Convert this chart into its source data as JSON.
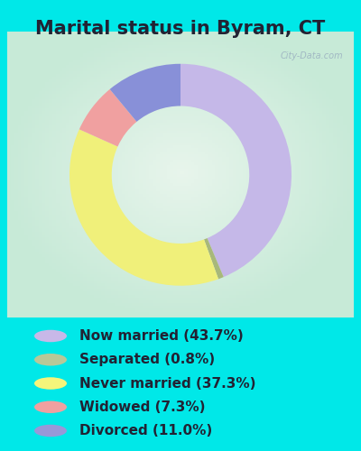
{
  "title": "Marital status in Byram, CT",
  "slices": [
    43.7,
    0.8,
    37.3,
    7.3,
    11.0
  ],
  "labels": [
    "Now married (43.7%)",
    "Separated (0.8%)",
    "Never married (37.3%)",
    "Widowed (7.3%)",
    "Divorced (11.0%)"
  ],
  "colors": [
    "#c5b8e8",
    "#a8b87a",
    "#f0f07a",
    "#f0a0a0",
    "#8890d8"
  ],
  "legend_colors": [
    "#c8b8e8",
    "#b8c898",
    "#f5f57a",
    "#f0a0a0",
    "#9898d8"
  ],
  "bg_color_outer": "#00e8e8",
  "bg_color_panel_edge": "#c8ead8",
  "bg_color_panel_center": "#e8f5ec",
  "title_fontsize": 15,
  "title_color": "#222233",
  "legend_text_color": "#222233",
  "watermark": "City-Data.com",
  "donut_width": 0.38,
  "startangle": 90,
  "legend_fontsize": 11
}
